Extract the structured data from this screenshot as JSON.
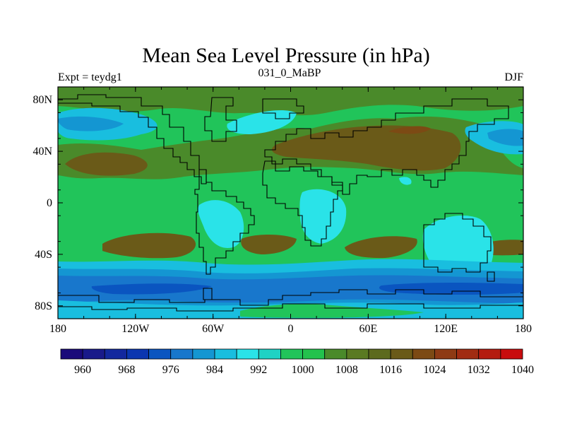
{
  "title": "Mean Sea Level Pressure (in hPa)",
  "subtitle_left": "Expt = teydg1",
  "subtitle_center": "031_0_MaBP",
  "subtitle_right": "DJF",
  "lat_labels": [
    "80N",
    "40N",
    "0",
    "40S",
    "80S"
  ],
  "lon_labels": [
    "180",
    "120W",
    "60W",
    "0",
    "60E",
    "120E",
    "180"
  ],
  "colorbar": {
    "labels": [
      "960",
      "968",
      "976",
      "984",
      "992",
      "1000",
      "1008",
      "1016",
      "1024",
      "1032",
      "1040"
    ],
    "colors": [
      "#1a0a7a",
      "#191a8a",
      "#13289e",
      "#0b36b0",
      "#0a55c0",
      "#1877cc",
      "#1496d2",
      "#19bedf",
      "#2ae3e8",
      "#1fd2c4",
      "#21c45a",
      "#23c24d",
      "#4a8a2a",
      "#5a7a22",
      "#5c6a1e",
      "#6a5a18",
      "#7c4a14",
      "#8e3a14",
      "#a12c12",
      "#b41c10",
      "#c80c0e"
    ]
  },
  "map_colors": {
    "lo3": "#0a55c0",
    "lo2": "#1877cc",
    "lo1": "#1496d2",
    "cyan": "#19bedf",
    "cyan_bright": "#2ae3e8",
    "green": "#21c45a",
    "olive": "#4a8a2a",
    "brown": "#6a5a18",
    "brown_dark": "#7c4a14"
  }
}
